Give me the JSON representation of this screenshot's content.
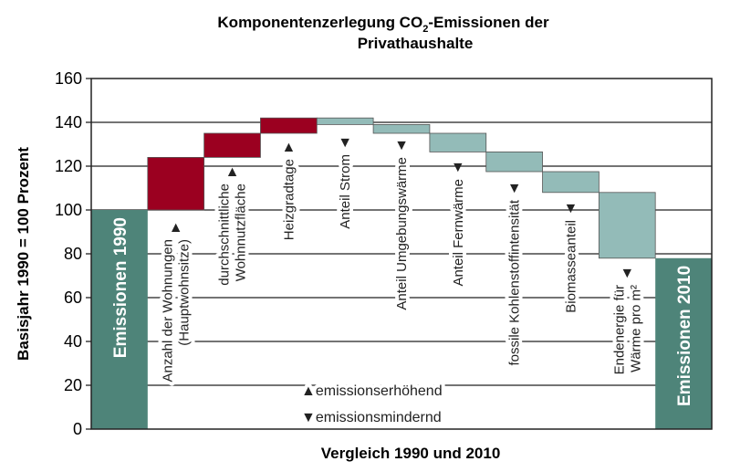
{
  "chart_data": {
    "type": "waterfall",
    "title_parts": [
      "Komponentenzerlegung CO",
      "2",
      "-Emissionen der"
    ],
    "title_line2": "Privathaushalte",
    "xlabel": "Vergleich 1990 und 2010",
    "ylabel": "Basisjahr 1990 = 100 Prozent",
    "ylim": [
      0,
      160
    ],
    "yticks": [
      "0",
      "20",
      "40",
      "60",
      "80",
      "100",
      "120",
      "140",
      "160"
    ],
    "colors": {
      "total": "#4e8479",
      "increase": "#9b0020",
      "decrease": "#93bbb8"
    },
    "steps": [
      {
        "label": [
          "Emissionen 1990"
        ],
        "kind": "total",
        "start": 0,
        "end": 100
      },
      {
        "label": [
          "Anzahl der Wohnungen",
          "(Hauptwohnsitze)"
        ],
        "kind": "increase",
        "start": 100,
        "end": 124
      },
      {
        "label": [
          "durchschnittliche",
          "Wohnnutzfläche"
        ],
        "kind": "increase",
        "start": 124,
        "end": 135
      },
      {
        "label": [
          "Heizgradtage"
        ],
        "kind": "increase",
        "start": 135,
        "end": 142
      },
      {
        "label": [
          "Anteil Strom"
        ],
        "kind": "decrease",
        "start": 142,
        "end": 139
      },
      {
        "label": [
          "Anteil Umgebungswärme"
        ],
        "kind": "decrease",
        "start": 139,
        "end": 135
      },
      {
        "label": [
          "Anteil Fernwärme"
        ],
        "kind": "decrease",
        "start": 135,
        "end": 126.5
      },
      {
        "label": [
          "fossile Kohlenstoffintensität"
        ],
        "kind": "decrease",
        "start": 126.5,
        "end": 117.5
      },
      {
        "label": [
          "Biomasseanteil"
        ],
        "kind": "decrease",
        "start": 117.5,
        "end": 108
      },
      {
        "label": [
          "Endenergie für",
          "Wärme pro m²"
        ],
        "kind": "decrease",
        "start": 108,
        "end": 78
      },
      {
        "label": [
          "Emissionen 2010"
        ],
        "kind": "total",
        "start": 0,
        "end": 78
      }
    ],
    "legend": {
      "increase": "emissionserhöhend",
      "decrease": "emissionsmindernd"
    }
  }
}
